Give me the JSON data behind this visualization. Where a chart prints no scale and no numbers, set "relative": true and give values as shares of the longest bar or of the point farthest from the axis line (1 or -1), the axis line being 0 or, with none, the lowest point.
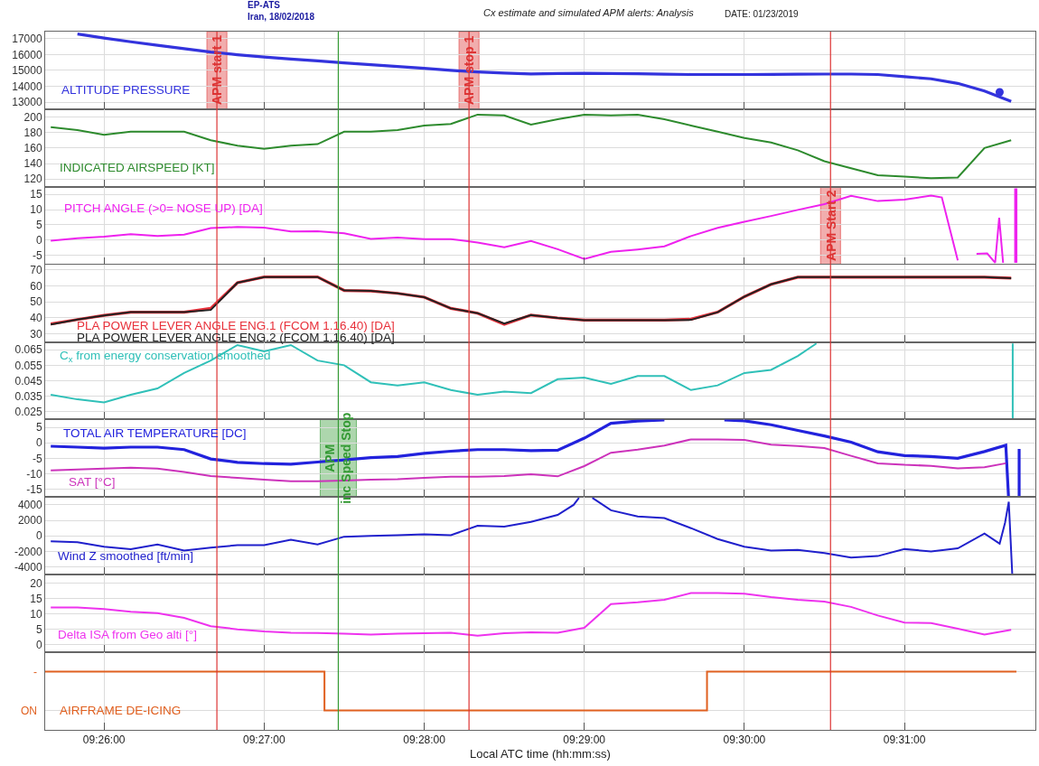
{
  "chart_data": [
    {
      "type": "line",
      "title": "Cx estimate and simulated APM alerts: Analysis",
      "annotations": [
        "EP-ATS",
        "Iran, 18/02/2018",
        "DATE: 01/23/2019"
      ],
      "series": [
        {
          "name": "ALTITUDE PRESSURE",
          "color": "#3333dd",
          "x": [
            9.43056,
            9.43333,
            9.43611,
            9.43889,
            9.44167,
            9.44444,
            9.44722,
            9.45,
            9.45278,
            9.45556,
            9.45833,
            9.46111,
            9.46389,
            9.46667,
            9.46944,
            9.47222,
            9.475,
            9.47778,
            9.48056,
            9.48333,
            9.48611,
            9.48889,
            9.49167,
            9.49444,
            9.49722,
            9.5,
            9.50278,
            9.50556,
            9.50833,
            9.51111,
            9.51389,
            9.51667,
            9.51944,
            9.52222,
            9.525,
            9.52778
          ],
          "values": [
            17300,
            17040,
            16810,
            16590,
            16370,
            16160,
            15990,
            15850,
            15720,
            15600,
            15480,
            15360,
            15250,
            15130,
            15000,
            14900,
            14830,
            14780,
            14800,
            14820,
            14800,
            14790,
            14760,
            14740,
            14740,
            14740,
            14750,
            14760,
            14770,
            14770,
            14740,
            14600,
            14470,
            14180,
            13700,
            13040
          ]
        },
        {
          "type": "scatter",
          "marker": "circle",
          "color": "#3333dd",
          "x": [
            9.52658
          ],
          "values": [
            13630
          ]
        }
      ],
      "xlim": [
        9.4272,
        9.5303
      ],
      "xticks": [
        {
          "value": 9.43333,
          "label": null
        },
        {
          "value": 9.45,
          "label": null
        },
        {
          "value": 9.46667,
          "label": null
        },
        {
          "value": 9.48333,
          "label": null
        },
        {
          "value": 9.5,
          "label": null
        },
        {
          "value": 9.51667,
          "label": null
        }
      ],
      "ylim": [
        12550,
        17450
      ],
      "yticks": [
        13000,
        14000,
        15000,
        16000,
        17000
      ],
      "tick_labels": "y",
      "grid": true,
      "ref_lines": [
        {
          "axis": "x",
          "value": 9.44508,
          "label": "APM start 1",
          "color": "#dd3333"
        },
        {
          "axis": "x",
          "value": 9.45772,
          "color": "#339933"
        },
        {
          "axis": "x",
          "value": 9.47133,
          "label": "APM stop 1",
          "color": "#dd3333"
        },
        {
          "axis": "x",
          "value": 9.50897,
          "color": "#dd3333"
        }
      ]
    },
    {
      "type": "line",
      "x": [
        9.42778,
        9.43056,
        9.43333,
        9.43611,
        9.43889,
        9.44167,
        9.44444,
        9.44722,
        9.45,
        9.45278,
        9.45556,
        9.45833,
        9.46111,
        9.46389,
        9.46667,
        9.46944,
        9.47222,
        9.475,
        9.47778,
        9.48056,
        9.48333,
        9.48611,
        9.48889,
        9.49167,
        9.49444,
        9.49722,
        9.5,
        9.50278,
        9.50556,
        9.50833,
        9.51111,
        9.51389,
        9.51667,
        9.51944,
        9.52222,
        9.525,
        9.52778
      ],
      "series": [
        {
          "name": "INDICATED AIRSPEED [KT]",
          "color": "#2e8b2e",
          "values": [
            187,
            183,
            177,
            181,
            181,
            181,
            170,
            163,
            159,
            163,
            165,
            181,
            181,
            183,
            189,
            191,
            203,
            202,
            190,
            197,
            203,
            202,
            203,
            197,
            189,
            181,
            173,
            167,
            157,
            143,
            134,
            125,
            123,
            121,
            122,
            160,
            170
          ]
        }
      ],
      "xlim": [
        9.4272,
        9.5303
      ],
      "xticks": [
        {
          "value": 9.43333,
          "label": null
        },
        {
          "value": 9.45,
          "label": null
        },
        {
          "value": 9.46667,
          "label": null
        },
        {
          "value": 9.48333,
          "label": null
        },
        {
          "value": 9.5,
          "label": null
        },
        {
          "value": 9.51667,
          "label": null
        }
      ],
      "ylim": [
        110,
        210
      ],
      "yticks": [
        120,
        140,
        160,
        180,
        200
      ],
      "tick_labels": "y",
      "grid": true,
      "ref_lines": [
        {
          "axis": "x",
          "value": 9.44508,
          "color": "#dd3333"
        },
        {
          "axis": "x",
          "value": 9.45772,
          "color": "#339933"
        },
        {
          "axis": "x",
          "value": 9.47133,
          "color": "#dd3333"
        },
        {
          "axis": "x",
          "value": 9.50897,
          "color": "#dd3333"
        }
      ]
    },
    {
      "type": "line",
      "series": [
        {
          "name": "PITCH ANGLE (>0= NOSE UP) [DA]",
          "color": "#ee22ee",
          "x": [
            9.42778,
            9.43056,
            9.43333,
            9.43611,
            9.43889,
            9.44167,
            9.44444,
            9.44722,
            9.45,
            9.45278,
            9.45556,
            9.45833,
            9.46111,
            9.46389,
            9.46667,
            9.46944,
            9.47222,
            9.475,
            9.47778,
            9.48056,
            9.48333,
            9.48611,
            9.48889,
            9.49167,
            9.49444,
            9.49722,
            9.5,
            9.50278,
            9.50556,
            9.50833,
            9.51111,
            9.51389,
            9.51667,
            9.51944,
            9.52056,
            9.52222,
            9.52292,
            9.52417,
            9.52528,
            9.52611,
            9.52653,
            9.52694,
            9.52736,
            9.52819,
            9.52819,
            9.52833,
            9.52833
          ],
          "values": [
            -0.2,
            0.6,
            1.1,
            1.9,
            1.3,
            1.8,
            3.9,
            4.3,
            4.1,
            2.8,
            2.9,
            2.2,
            0.4,
            0.8,
            0.3,
            0.3,
            -0.8,
            -2.4,
            -0.3,
            -3,
            -6.2,
            -3.9,
            -3.1,
            -2.1,
            1.3,
            4.0,
            6,
            7.9,
            9.9,
            11.8,
            14.5,
            12.8,
            13.3,
            14.6,
            14,
            -6.7,
            null,
            -4.5,
            -4.4,
            -7.5,
            7.3,
            -7.5,
            null,
            -7.5,
            17,
            -7.5,
            17
          ]
        }
      ],
      "xlim": [
        9.4272,
        9.5303
      ],
      "xticks": [
        {
          "value": 9.43333,
          "label": null
        },
        {
          "value": 9.45,
          "label": null
        },
        {
          "value": 9.46667,
          "label": null
        },
        {
          "value": 9.48333,
          "label": null
        },
        {
          "value": 9.5,
          "label": null
        },
        {
          "value": 9.51667,
          "label": null
        }
      ],
      "ylim": [
        -8,
        17.5
      ],
      "yticks": [
        -5,
        0,
        5,
        10,
        15
      ],
      "tick_labels": "y",
      "grid": true,
      "ref_lines": [
        {
          "axis": "x",
          "value": 9.44508,
          "color": "#dd3333"
        },
        {
          "axis": "x",
          "value": 9.45772,
          "color": "#339933"
        },
        {
          "axis": "x",
          "value": 9.47133,
          "color": "#dd3333"
        },
        {
          "axis": "x",
          "value": 9.50897,
          "label": "APM Start 2",
          "color": "#dd3333"
        }
      ]
    },
    {
      "type": "line",
      "x": [
        9.42778,
        9.43056,
        9.43333,
        9.43611,
        9.43889,
        9.44167,
        9.44444,
        9.44722,
        9.45,
        9.45278,
        9.45556,
        9.45833,
        9.46111,
        9.46389,
        9.46667,
        9.46944,
        9.47222,
        9.475,
        9.47778,
        9.48056,
        9.48333,
        9.48611,
        9.48889,
        9.49167,
        9.49444,
        9.49722,
        9.5,
        9.50278,
        9.50556,
        9.50833,
        9.51111,
        9.51389,
        9.51667,
        9.51944,
        9.52222,
        9.525,
        9.52778
      ],
      "series": [
        {
          "name": "PLA POWER LEVER ANGLE ENG.1 (FCOM 1.16.40) [DA]",
          "color": "#e8303a",
          "values": [
            36.3,
            39,
            41.6,
            43.6,
            43.6,
            43.6,
            46,
            62,
            65.6,
            65.6,
            65.6,
            57.2,
            56.9,
            55.4,
            53,
            46,
            43,
            36,
            41.8,
            40,
            38.6,
            38.6,
            38.6,
            38.6,
            39.2,
            43.6,
            53.3,
            61,
            65.5,
            65.5,
            65.5,
            65.5,
            65.5,
            65.5,
            65.5,
            65.5,
            64.9
          ]
        },
        {
          "name": "PLA POWER LEVER ANGLE ENG.2 (FCOM 1.16.40) [DA]",
          "color": "#222222",
          "values": [
            35.9,
            39,
            41.6,
            43.6,
            43.6,
            43.6,
            45,
            62,
            65.6,
            65.6,
            65.6,
            57.2,
            56.9,
            55.4,
            53,
            46,
            43,
            36.5,
            41.8,
            40,
            38.6,
            38.6,
            38.6,
            38.6,
            38.8,
            43.6,
            53.3,
            61,
            65.5,
            65.5,
            65.5,
            65.5,
            65.5,
            65.5,
            65.5,
            65.5,
            64.9
          ]
        }
      ],
      "xlim": [
        9.4272,
        9.5303
      ],
      "xticks": [
        {
          "value": 9.43333,
          "label": null
        },
        {
          "value": 9.45,
          "label": null
        },
        {
          "value": 9.46667,
          "label": null
        },
        {
          "value": 9.48333,
          "label": null
        },
        {
          "value": 9.5,
          "label": null
        },
        {
          "value": 9.51667,
          "label": null
        }
      ],
      "ylim": [
        25,
        73.5
      ],
      "yticks": [
        30,
        40,
        50,
        60,
        70
      ],
      "tick_labels": "y",
      "grid": true,
      "ref_lines": [
        {
          "axis": "x",
          "value": 9.44508,
          "color": "#dd3333"
        },
        {
          "axis": "x",
          "value": 9.45772,
          "color": "#339933"
        },
        {
          "axis": "x",
          "value": 9.47133,
          "color": "#dd3333"
        },
        {
          "axis": "x",
          "value": 9.50897,
          "color": "#dd3333"
        }
      ]
    },
    {
      "type": "line",
      "series": [
        {
          "name": "C$_{x}$ from energy conservation smoothed",
          "color": "#30c0b8",
          "x": [
            9.42778,
            9.43056,
            9.43333,
            9.43611,
            9.43889,
            9.44167,
            9.44444,
            9.44722,
            9.45,
            9.45278,
            9.45556,
            9.45833,
            9.46111,
            9.46389,
            9.46667,
            9.46944,
            9.47222,
            9.475,
            9.47778,
            9.48056,
            9.48333,
            9.48611,
            9.48889,
            9.49167,
            9.49444,
            9.49722,
            9.5,
            9.50278,
            9.50556,
            9.5075,
            9.52,
            9.52794,
            9.52794
          ],
          "values": [
            0.036,
            0.033,
            0.031,
            0.036,
            0.04,
            0.05,
            0.058,
            0.068,
            0.064,
            0.068,
            0.058,
            0.055,
            0.044,
            0.042,
            0.044,
            0.039,
            0.036,
            0.038,
            0.037,
            0.046,
            0.047,
            0.043,
            0.048,
            0.048,
            0.039,
            0.042,
            0.05,
            0.052,
            0.061,
            0.069,
            null,
            0.069,
            0.0205
          ]
        }
      ],
      "xlim": [
        9.4272,
        9.5303
      ],
      "xticks": [
        {
          "value": 9.43333,
          "label": null
        },
        {
          "value": 9.45,
          "label": null
        },
        {
          "value": 9.46667,
          "label": null
        },
        {
          "value": 9.48333,
          "label": null
        },
        {
          "value": 9.5,
          "label": null
        },
        {
          "value": 9.51667,
          "label": null
        }
      ],
      "ylim": [
        0.02,
        0.07
      ],
      "yticks": [
        0.025,
        0.035,
        0.045,
        0.055,
        0.065
      ],
      "tick_labels": "y",
      "grid": true,
      "ref_lines": [
        {
          "axis": "x",
          "value": 9.44508,
          "color": "#dd3333"
        },
        {
          "axis": "x",
          "value": 9.45772,
          "color": "#339933"
        },
        {
          "axis": "x",
          "value": 9.47133,
          "color": "#dd3333"
        },
        {
          "axis": "x",
          "value": 9.50897,
          "color": "#dd3333"
        }
      ]
    },
    {
      "type": "line",
      "series": [
        {
          "name": "TOTAL AIR TEMPERATURE [DC]",
          "color": "#2222dd",
          "x": [
            9.42778,
            9.43056,
            9.43333,
            9.43611,
            9.43889,
            9.44167,
            9.44444,
            9.44722,
            9.45,
            9.45278,
            9.45556,
            9.45833,
            9.46111,
            9.46389,
            9.46667,
            9.46944,
            9.47222,
            9.475,
            9.47778,
            9.48056,
            9.48333,
            9.48611,
            9.48889,
            9.49167,
            9.49444,
            9.49792,
            9.5,
            9.50278,
            9.50556,
            9.50833,
            9.51111,
            9.51389,
            9.51667,
            9.51944,
            9.52222,
            9.525,
            9.52722,
            9.5275,
            9.52806,
            9.52861,
            9.52861
          ],
          "values": [
            -1.1,
            -1.4,
            -1.7,
            -1.4,
            -1.4,
            -2.2,
            -5.2,
            -6.3,
            -6.7,
            -6.9,
            -6.2,
            -5.5,
            -4.8,
            -4.4,
            -3.4,
            -2.7,
            -2.2,
            -2.2,
            -2.5,
            -2.4,
            1.5,
            6.3,
            7.0,
            7.4,
            null,
            7.4,
            7.1,
            5.8,
            4.0,
            2.2,
            0.2,
            -2.9,
            -4.1,
            -4.4,
            -5.0,
            -2.8,
            -0.8,
            -17.2,
            null,
            -2.0,
            -17.2
          ]
        },
        {
          "name": "SAT [°C]",
          "color": "#cc33bb",
          "x": [
            9.42778,
            9.43056,
            9.43333,
            9.43611,
            9.43889,
            9.44167,
            9.44444,
            9.44722,
            9.45,
            9.45278,
            9.45556,
            9.45833,
            9.46111,
            9.46389,
            9.46667,
            9.46944,
            9.47222,
            9.475,
            9.47778,
            9.48056,
            9.48333,
            9.48611,
            9.48889,
            9.49167,
            9.49444,
            9.49722,
            9.5,
            9.50278,
            9.50556,
            9.50833,
            9.51111,
            9.51389,
            9.51667,
            9.51944,
            9.52222,
            9.525,
            9.52722
          ],
          "values": [
            -8.9,
            -8.6,
            -8.3,
            -8.0,
            -8.3,
            -9.4,
            -10.7,
            -11.3,
            -11.9,
            -12.4,
            -12.4,
            -12.2,
            -11.9,
            -11.7,
            -11.3,
            -10.9,
            -10.9,
            -10.7,
            -10.1,
            -10.8,
            -7.5,
            -3.2,
            -2.2,
            -0.9,
            1.1,
            1.1,
            0.9,
            -0.6,
            -1.0,
            -1.7,
            -4.2,
            -6.6,
            -7.1,
            -7.4,
            -8.2,
            -7.9,
            -6.6
          ]
        }
      ],
      "xlim": [
        9.4272,
        9.5303
      ],
      "xticks": [
        {
          "value": 9.43333,
          "label": null
        },
        {
          "value": 9.45,
          "label": null
        },
        {
          "value": 9.46667,
          "label": null
        },
        {
          "value": 9.48333,
          "label": null
        },
        {
          "value": 9.5,
          "label": null
        },
        {
          "value": 9.51667,
          "label": null
        }
      ],
      "ylim": [
        -17.5,
        7.5
      ],
      "yticks": [
        -15,
        -10,
        -5,
        0,
        5
      ],
      "tick_labels": "y",
      "grid": true,
      "ref_lines": [
        {
          "axis": "x",
          "value": 9.44508,
          "color": "#dd3333"
        },
        {
          "axis": "x",
          "value": 9.45772,
          "label": "APM\ninc Speed Stop",
          "color": "#339933"
        },
        {
          "axis": "x",
          "value": 9.47133,
          "color": "#dd3333"
        },
        {
          "axis": "x",
          "value": 9.50897,
          "color": "#dd3333"
        }
      ]
    },
    {
      "type": "line",
      "series": [
        {
          "name": "Wind Z smoothed [ft/min]",
          "color": "#2020cc",
          "x": [
            9.42778,
            9.43056,
            9.43333,
            9.43611,
            9.43889,
            9.44167,
            9.44444,
            9.44722,
            9.45,
            9.45278,
            9.45556,
            9.45833,
            9.46111,
            9.46389,
            9.46667,
            9.46944,
            9.47222,
            9.475,
            9.47778,
            9.48056,
            9.48222,
            9.48278,
            9.48333,
            9.48417,
            9.48611,
            9.48889,
            9.49167,
            9.49444,
            9.49722,
            9.5,
            9.50278,
            9.50556,
            9.50833,
            9.51111,
            9.51389,
            9.51667,
            9.51944,
            9.52222,
            9.525,
            9.52658,
            9.52714,
            9.52753,
            9.52789
          ],
          "values": [
            -700,
            -800,
            -1400,
            -1700,
            -1100,
            -1900,
            -1500,
            -1200,
            -1200,
            -500,
            -1100,
            -100,
            0,
            100,
            200,
            100,
            1300,
            1200,
            1800,
            2700,
            4000,
            4900,
            null,
            4900,
            3300,
            2500,
            2300,
            1000,
            -400,
            -1400,
            -1900,
            -1800,
            -2200,
            -2800,
            -2600,
            -1700,
            -2000,
            -1600,
            300,
            -1000,
            1700,
            4400,
            -4900
          ]
        }
      ],
      "xlim": [
        9.4272,
        9.5303
      ],
      "xticks": [
        {
          "value": 9.43333,
          "label": null
        },
        {
          "value": 9.45,
          "label": null
        },
        {
          "value": 9.46667,
          "label": null
        },
        {
          "value": 9.48333,
          "label": null
        },
        {
          "value": 9.5,
          "label": null
        },
        {
          "value": 9.51667,
          "label": null
        }
      ],
      "ylim": [
        -5000,
        5000
      ],
      "yticks": [
        -4000,
        -2000,
        0,
        2000,
        4000
      ],
      "tick_labels": "y",
      "grid": true,
      "ref_lines": [
        {
          "axis": "x",
          "value": 9.44508,
          "color": "#dd3333"
        },
        {
          "axis": "x",
          "value": 9.45772,
          "color": "#339933"
        },
        {
          "axis": "x",
          "value": 9.47133,
          "color": "#dd3333"
        },
        {
          "axis": "x",
          "value": 9.50897,
          "color": "#dd3333"
        }
      ]
    },
    {
      "type": "line",
      "x": [
        9.42778,
        9.43056,
        9.43333,
        9.43611,
        9.43889,
        9.44167,
        9.44444,
        9.44722,
        9.45,
        9.45278,
        9.45556,
        9.45833,
        9.46111,
        9.46389,
        9.46667,
        9.46944,
        9.47222,
        9.475,
        9.47778,
        9.48056,
        9.48333,
        9.48611,
        9.48889,
        9.49167,
        9.49444,
        9.49722,
        9.5,
        9.50278,
        9.50556,
        9.50833,
        9.51111,
        9.51389,
        9.51667,
        9.51944,
        9.52222,
        9.525,
        9.52778
      ],
      "series": [
        {
          "name": "Delta ISA from Geo alti [°]",
          "color": "#ee33ee",
          "values": [
            12.1,
            12.1,
            11.6,
            10.7,
            10.3,
            8.7,
            6.0,
            5.0,
            4.3,
            3.9,
            3.8,
            3.6,
            3.3,
            3.6,
            3.7,
            3.9,
            2.9,
            3.7,
            4.0,
            3.9,
            5.5,
            13.2,
            13.8,
            14.6,
            16.8,
            16.8,
            16.6,
            15.5,
            14.6,
            14.0,
            12.3,
            9.5,
            7.2,
            7.0,
            5.2,
            3.3,
            4.8
          ]
        }
      ],
      "xlim": [
        9.4272,
        9.5303
      ],
      "xticks": [
        {
          "value": 9.43333,
          "label": null
        },
        {
          "value": 9.45,
          "label": null
        },
        {
          "value": 9.46667,
          "label": null
        },
        {
          "value": 9.48333,
          "label": null
        },
        {
          "value": 9.5,
          "label": null
        },
        {
          "value": 9.51667,
          "label": null
        }
      ],
      "ylim": [
        -2.5,
        22.8
      ],
      "yticks": [
        0,
        5,
        10,
        15,
        20
      ],
      "tick_labels": "y",
      "grid": true,
      "ref_lines": [
        {
          "axis": "x",
          "value": 9.44508,
          "color": "#dd3333"
        },
        {
          "axis": "x",
          "value": 9.45772,
          "color": "#339933"
        },
        {
          "axis": "x",
          "value": 9.47133,
          "color": "#dd3333"
        },
        {
          "axis": "x",
          "value": 9.50897,
          "color": "#dd3333"
        }
      ]
    },
    {
      "type": "step",
      "xlabel": "Local ATC time (hh:mm:ss)",
      "relative": true,
      "annotations": [
        "-",
        "ON"
      ],
      "x": [
        9.4272,
        9.45575,
        9.45628,
        9.49558,
        9.49611,
        9.52833
      ],
      "series": [
        {
          "name": "AIRFRAME DE-ICING",
          "color": "#e06020",
          "values": [
            1,
            1,
            0,
            0,
            1,
            1
          ]
        }
      ],
      "xlim": [
        9.4272,
        9.5303
      ],
      "xticks": [
        {
          "value": 9.43333,
          "label": "09:26:00"
        },
        {
          "value": 9.45,
          "label": "09:27:00"
        },
        {
          "value": 9.46667,
          "label": "09:28:00"
        },
        {
          "value": 9.48333,
          "label": "09:29:00"
        },
        {
          "value": 9.5,
          "label": "09:30:00"
        },
        {
          "value": 9.51667,
          "label": "09:31:00"
        }
      ],
      "grid": true,
      "ref_lines": [
        {
          "axis": "x",
          "value": 9.44508,
          "color": "#dd3333"
        },
        {
          "axis": "x",
          "value": 9.45772,
          "color": "#339933"
        },
        {
          "axis": "x",
          "value": 9.47133,
          "color": "#dd3333"
        },
        {
          "axis": "x",
          "value": 9.50897,
          "color": "#dd3333"
        }
      ]
    }
  ]
}
